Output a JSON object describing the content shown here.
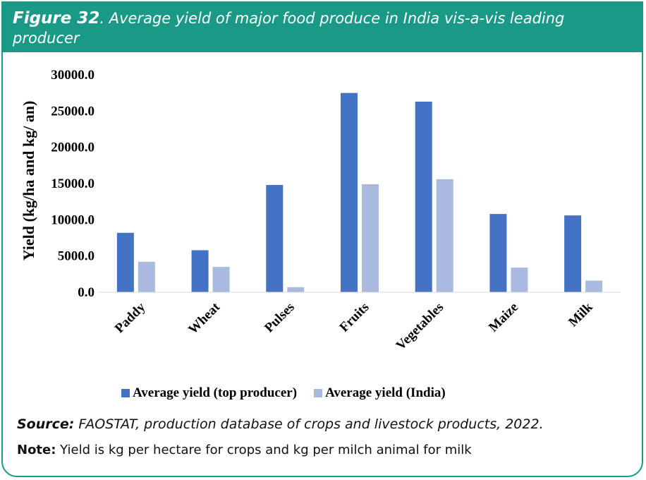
{
  "header": {
    "figure_label": "Figure 32",
    "title": ". Average yield of major food produce in India vis-a-vis leading producer"
  },
  "colors": {
    "header_bg": "#1a9a86",
    "top_producer": "#4472c4",
    "india": "#a9b9df"
  },
  "chart_data": {
    "type": "bar",
    "ylabel": "Yield (kg/ha and kg/ an)",
    "xlabel": "",
    "ylim": [
      0,
      30000
    ],
    "yticks": [
      "0.0",
      "5000.0",
      "10000.0",
      "15000.0",
      "20000.0",
      "25000.0",
      "30000.0"
    ],
    "categories": [
      "Paddy",
      "Wheat",
      "Pulses",
      "Fruits",
      "Vegetables",
      "Maize",
      "Milk"
    ],
    "series": [
      {
        "name": "Average yield (top producer)",
        "values": [
          8200,
          5800,
          14800,
          27500,
          26300,
          10800,
          10600
        ]
      },
      {
        "name": "Average yield (India)",
        "values": [
          4200,
          3500,
          700,
          14900,
          15600,
          3400,
          1600
        ]
      }
    ],
    "legend_position": "bottom",
    "grid": false
  },
  "footer": {
    "source_label": "Source:",
    "source_text": " FAOSTAT, production database of crops and livestock products, 2022.",
    "note_label": "Note:",
    "note_text": " Yield is kg per hectare for crops and kg per milch animal for milk"
  }
}
